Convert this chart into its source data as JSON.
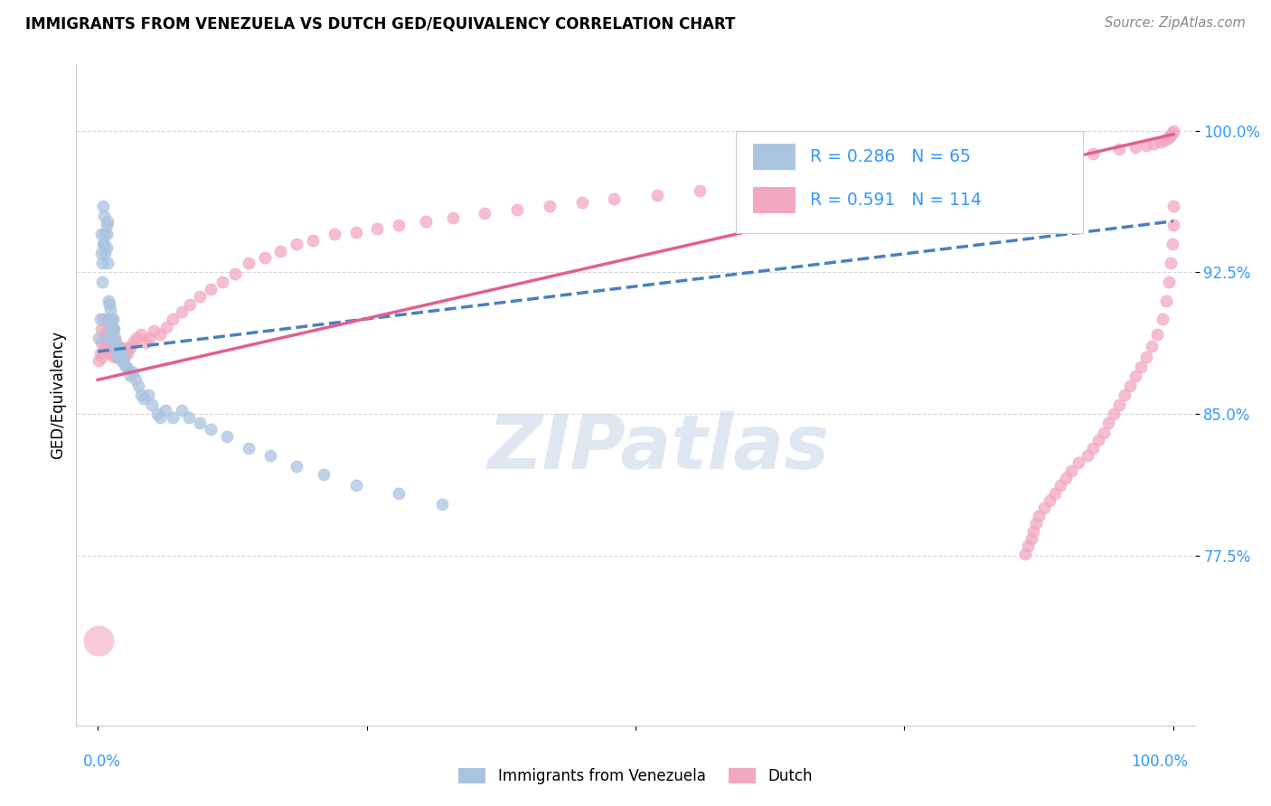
{
  "title": "IMMIGRANTS FROM VENEZUELA VS DUTCH GED/EQUIVALENCY CORRELATION CHART",
  "source": "Source: ZipAtlas.com",
  "ylabel": "GED/Equivalency",
  "ytick_labels": [
    "100.0%",
    "92.5%",
    "85.0%",
    "77.5%"
  ],
  "ytick_values": [
    1.0,
    0.925,
    0.85,
    0.775
  ],
  "xlim": [
    -0.02,
    1.02
  ],
  "ylim": [
    0.685,
    1.035
  ],
  "legend_blue_R": "0.286",
  "legend_blue_N": "65",
  "legend_pink_R": "0.591",
  "legend_pink_N": "114",
  "legend_label_blue": "Immigrants from Venezuela",
  "legend_label_pink": "Dutch",
  "color_blue": "#aac4e0",
  "color_pink": "#f2a8be",
  "color_blue_line": "#4a7fc1",
  "color_pink_line": "#e06090",
  "color_blue_text": "#3399ff",
  "watermark_color": "#c8d8ea",
  "blue_scatter_x": [
    0.001,
    0.002,
    0.003,
    0.003,
    0.004,
    0.004,
    0.005,
    0.005,
    0.006,
    0.006,
    0.007,
    0.007,
    0.008,
    0.008,
    0.008,
    0.009,
    0.009,
    0.01,
    0.01,
    0.01,
    0.011,
    0.011,
    0.012,
    0.012,
    0.013,
    0.013,
    0.014,
    0.014,
    0.015,
    0.015,
    0.016,
    0.017,
    0.018,
    0.019,
    0.02,
    0.021,
    0.022,
    0.024,
    0.025,
    0.027,
    0.028,
    0.03,
    0.033,
    0.035,
    0.038,
    0.04,
    0.043,
    0.047,
    0.05,
    0.055,
    0.058,
    0.063,
    0.07,
    0.078,
    0.085,
    0.095,
    0.105,
    0.12,
    0.14,
    0.16,
    0.185,
    0.21,
    0.24,
    0.28,
    0.32
  ],
  "blue_scatter_y": [
    0.89,
    0.9,
    0.935,
    0.945,
    0.93,
    0.92,
    0.96,
    0.94,
    0.955,
    0.94,
    0.945,
    0.935,
    0.95,
    0.945,
    0.938,
    0.93,
    0.952,
    0.89,
    0.9,
    0.91,
    0.9,
    0.908,
    0.895,
    0.905,
    0.895,
    0.9,
    0.9,
    0.895,
    0.89,
    0.895,
    0.885,
    0.888,
    0.88,
    0.885,
    0.885,
    0.882,
    0.878,
    0.88,
    0.876,
    0.875,
    0.874,
    0.87,
    0.872,
    0.868,
    0.865,
    0.86,
    0.858,
    0.86,
    0.855,
    0.85,
    0.848,
    0.852,
    0.848,
    0.852,
    0.848,
    0.845,
    0.842,
    0.838,
    0.832,
    0.828,
    0.822,
    0.818,
    0.812,
    0.808,
    0.802
  ],
  "blue_scatter_sizes": [
    200,
    80,
    80,
    80,
    80,
    80,
    80,
    80,
    80,
    80,
    80,
    80,
    80,
    80,
    80,
    80,
    80,
    80,
    80,
    80,
    80,
    80,
    80,
    80,
    80,
    80,
    80,
    80,
    80,
    80,
    80,
    80,
    80,
    80,
    80,
    80,
    80,
    80,
    80,
    80,
    80,
    80,
    80,
    80,
    80,
    80,
    80,
    80,
    80,
    80,
    80,
    80,
    80,
    80,
    80,
    80,
    80,
    80,
    80,
    80,
    80,
    80,
    80,
    80,
    80
  ],
  "pink_scatter_x": [
    0.001,
    0.002,
    0.003,
    0.003,
    0.004,
    0.005,
    0.006,
    0.007,
    0.008,
    0.009,
    0.01,
    0.011,
    0.012,
    0.013,
    0.014,
    0.015,
    0.016,
    0.017,
    0.018,
    0.019,
    0.02,
    0.022,
    0.024,
    0.026,
    0.028,
    0.03,
    0.033,
    0.036,
    0.04,
    0.044,
    0.048,
    0.052,
    0.058,
    0.064,
    0.07,
    0.078,
    0.086,
    0.095,
    0.105,
    0.116,
    0.128,
    0.14,
    0.155,
    0.17,
    0.185,
    0.2,
    0.22,
    0.24,
    0.26,
    0.28,
    0.305,
    0.33,
    0.36,
    0.39,
    0.42,
    0.45,
    0.48,
    0.52,
    0.56,
    0.6,
    0.64,
    0.68,
    0.72,
    0.76,
    0.8,
    0.84,
    0.87,
    0.9,
    0.925,
    0.95,
    0.965,
    0.975,
    0.982,
    0.988,
    0.992,
    0.995,
    0.997,
    0.998,
    0.999,
    1.0,
    0.999,
    1.0,
    1.0,
    0.998,
    0.996,
    0.993,
    0.99,
    0.985,
    0.98,
    0.975,
    0.97,
    0.965,
    0.96,
    0.955,
    0.95,
    0.945,
    0.94,
    0.935,
    0.93,
    0.925,
    0.92,
    0.912,
    0.905,
    0.9,
    0.895,
    0.89,
    0.885,
    0.88,
    0.875,
    0.872,
    0.87,
    0.868,
    0.865,
    0.862
  ],
  "pink_scatter_y": [
    0.878,
    0.882,
    0.888,
    0.895,
    0.88,
    0.9,
    0.892,
    0.885,
    0.89,
    0.895,
    0.885,
    0.89,
    0.882,
    0.888,
    0.895,
    0.88,
    0.89,
    0.885,
    0.88,
    0.886,
    0.88,
    0.885,
    0.88,
    0.885,
    0.882,
    0.885,
    0.888,
    0.89,
    0.892,
    0.888,
    0.89,
    0.894,
    0.892,
    0.896,
    0.9,
    0.904,
    0.908,
    0.912,
    0.916,
    0.92,
    0.924,
    0.93,
    0.933,
    0.936,
    0.94,
    0.942,
    0.945,
    0.946,
    0.948,
    0.95,
    0.952,
    0.954,
    0.956,
    0.958,
    0.96,
    0.962,
    0.964,
    0.966,
    0.968,
    0.97,
    0.972,
    0.974,
    0.976,
    0.978,
    0.98,
    0.982,
    0.984,
    0.986,
    0.988,
    0.99,
    0.991,
    0.992,
    0.993,
    0.994,
    0.995,
    0.996,
    0.997,
    0.998,
    0.999,
    1.0,
    0.94,
    0.95,
    0.96,
    0.93,
    0.92,
    0.91,
    0.9,
    0.892,
    0.886,
    0.88,
    0.875,
    0.87,
    0.865,
    0.86,
    0.855,
    0.85,
    0.845,
    0.84,
    0.836,
    0.832,
    0.828,
    0.824,
    0.82,
    0.816,
    0.812,
    0.808,
    0.804,
    0.8,
    0.796,
    0.792,
    0.788,
    0.784,
    0.78,
    0.776
  ],
  "blue_line_x": [
    0.0,
    1.0
  ],
  "blue_line_y": [
    0.883,
    0.952
  ],
  "pink_line_x": [
    0.0,
    1.0
  ],
  "pink_line_y": [
    0.868,
    0.998
  ]
}
